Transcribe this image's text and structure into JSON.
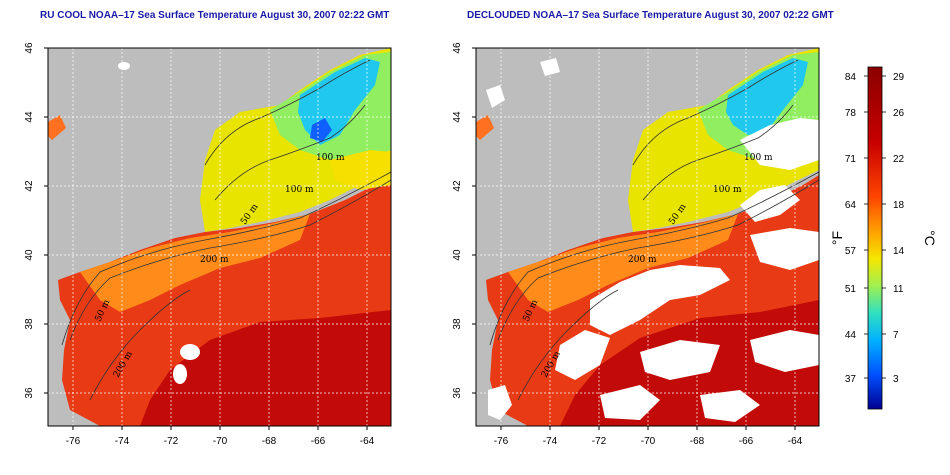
{
  "panels": [
    {
      "title": "RU COOL NOAA–17 Sea Surface Temperature August 30, 2007 02:22 GMT",
      "contour_labels": [
        "100 m",
        "100 m",
        "50 m",
        "200 m",
        "50 m",
        "200 m"
      ],
      "clouds": "shown"
    },
    {
      "title": "DECLOUDED NOAA–17 Sea Surface Temperature August 30, 2007 02:22 GMT",
      "contour_labels": [
        "100 m",
        "100 m",
        "50 m",
        "200 m",
        "50 m",
        "200 m"
      ],
      "clouds": "removed"
    }
  ],
  "axes": {
    "lon_ticks": [
      "-76",
      "-74",
      "-72",
      "-70",
      "-68",
      "-64"
    ],
    "lon_ticks_full": [
      "-76",
      "-74",
      "-72",
      "-70",
      "-68",
      "-66",
      "-64"
    ],
    "lat_ticks": [
      "36",
      "38",
      "40",
      "42",
      "44",
      "46"
    ]
  },
  "colorbar": {
    "fahrenheit_ticks": [
      "84",
      "78",
      "71",
      "64",
      "57",
      "51",
      "44",
      "37"
    ],
    "celsius_ticks": [
      "29",
      "26",
      "22",
      "18",
      "14",
      "11",
      "7",
      "3"
    ],
    "fahrenheit_unit": "°F",
    "celsius_unit": "°C",
    "colors": [
      "#0000a0",
      "#0030ff",
      "#00b0ff",
      "#20e0c0",
      "#a0f060",
      "#f0f000",
      "#ffb000",
      "#ff6000",
      "#e82000",
      "#b00000"
    ]
  },
  "colors": {
    "land": "#bdbdbd",
    "cloud": "#ffffff",
    "title": "#1a1aa8"
  }
}
